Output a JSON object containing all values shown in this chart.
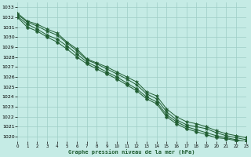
{
  "xlabel": "Graphe pression niveau de la mer (hPa)",
  "xlim": [
    0,
    23
  ],
  "ylim": [
    1019.5,
    1033.5
  ],
  "yticks": [
    1020,
    1021,
    1022,
    1023,
    1024,
    1025,
    1026,
    1027,
    1028,
    1029,
    1030,
    1031,
    1032,
    1033
  ],
  "xticks": [
    0,
    1,
    2,
    3,
    4,
    5,
    6,
    7,
    8,
    9,
    10,
    11,
    12,
    13,
    14,
    15,
    16,
    17,
    18,
    19,
    20,
    21,
    22,
    23
  ],
  "background_color": "#c5ebe5",
  "grid_color": "#9ecec6",
  "line_color": "#1e5c30",
  "series": [
    [
      1032.4,
      1031.6,
      1031.3,
      1030.8,
      1030.4,
      1029.5,
      1028.8,
      1027.8,
      1027.4,
      1027.0,
      1026.5,
      1026.0,
      1025.5,
      1024.5,
      1024.1,
      1022.8,
      1022.0,
      1021.5,
      1021.3,
      1021.0,
      1020.6,
      1020.3,
      1020.1,
      1019.9
    ],
    [
      1032.3,
      1031.5,
      1031.1,
      1030.6,
      1030.2,
      1029.4,
      1028.6,
      1027.7,
      1027.3,
      1026.8,
      1026.3,
      1025.8,
      1025.2,
      1024.3,
      1023.8,
      1022.5,
      1021.7,
      1021.2,
      1021.0,
      1020.8,
      1020.4,
      1020.1,
      1019.9,
      1019.7
    ],
    [
      1032.1,
      1031.3,
      1030.8,
      1030.2,
      1029.8,
      1029.1,
      1028.3,
      1027.5,
      1027.0,
      1026.5,
      1026.0,
      1025.4,
      1024.8,
      1024.0,
      1023.5,
      1022.2,
      1021.5,
      1021.0,
      1020.7,
      1020.4,
      1020.1,
      1019.9,
      1019.7,
      1019.5
    ],
    [
      1032.0,
      1031.0,
      1030.6,
      1030.0,
      1029.5,
      1028.8,
      1028.0,
      1027.3,
      1026.8,
      1026.3,
      1025.8,
      1025.2,
      1024.6,
      1023.8,
      1023.3,
      1022.0,
      1021.3,
      1020.8,
      1020.5,
      1020.2,
      1019.9,
      1019.8,
      1019.6,
      1019.4
    ]
  ]
}
